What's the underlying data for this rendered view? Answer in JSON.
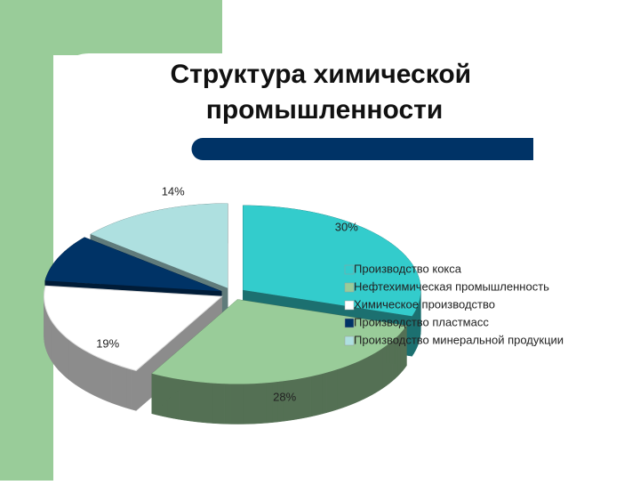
{
  "chart_data": {
    "type": "pie3d",
    "title": "Структура химической промышленности",
    "categories": [
      "Производство кокса",
      "Нефтехимическая промышленность",
      "Химическое производство",
      "Производство пластмасс",
      "Производство минеральной продукции"
    ],
    "values": [
      30,
      28,
      19,
      9,
      14
    ],
    "value_labels": [
      "30%",
      "28%",
      "19%",
      null,
      "14%"
    ],
    "colors": [
      "#33cccc",
      "#99cc99",
      "#ffffff",
      "#003366",
      "#aee0e0"
    ],
    "legend": "right"
  }
}
